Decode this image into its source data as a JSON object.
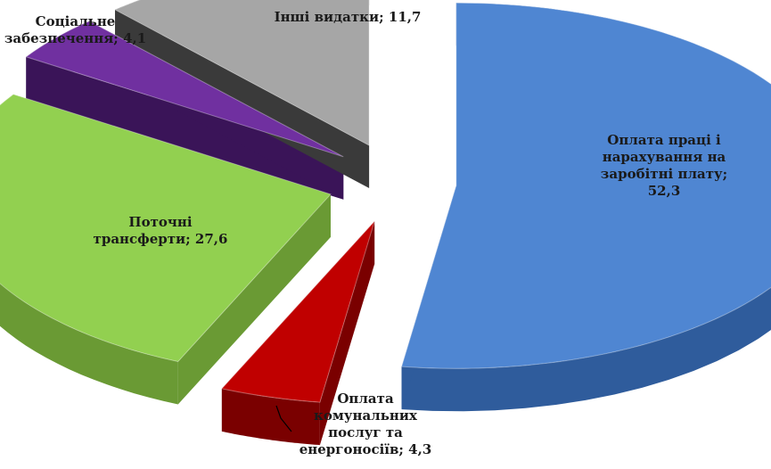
{
  "chart_data": {
    "type": "pie",
    "style": "3d-exploded",
    "title": "",
    "labels": [
      "Оплата праці і\nнарахування на\nзаробітні плату;\n52,3",
      "Оплата\nкомунальних\nпослуг та\nенергоносіїв; 4,3",
      "Поточні\nтрансферти; 27,6",
      "Соціальне\nзабезпечення; 4,1",
      "Інші видатки; 11,7"
    ],
    "categories": [
      "Оплата праці і нарахування на заробітні плату",
      "Оплата комунальних послуг та енергоносіїв",
      "Поточні трансферти",
      "Соціальне забезпечення",
      "Інші видатки"
    ],
    "values": [
      52.3,
      4.3,
      27.6,
      4.1,
      11.7
    ],
    "colors": [
      "#4f86d2",
      "#c00000",
      "#92d050",
      "#7030a0",
      "#a6a6a6"
    ],
    "side_colors": [
      "#2f5c9c",
      "#7a0000",
      "#6a9a34",
      "#3a1458",
      "#3a3a3a"
    ]
  }
}
